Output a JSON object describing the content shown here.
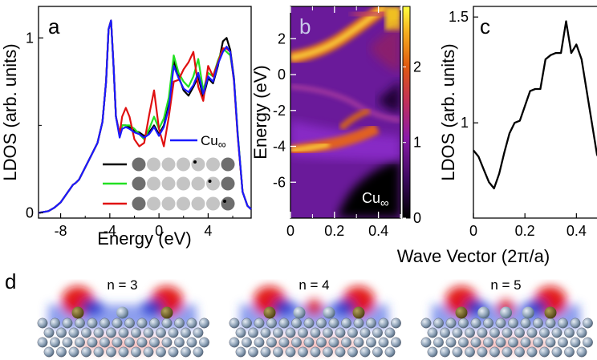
{
  "panels": {
    "a": "a",
    "b": "b",
    "c": "c",
    "d": "d"
  },
  "colors": {
    "black": "#000000",
    "green": "#22e022",
    "red": "#e01010",
    "blue": "#1a1aff",
    "atom_dark": "#6e6e6e",
    "atom_light": "#c4c4c4"
  },
  "chart_data": [
    {
      "panel": "a",
      "type": "line",
      "xlabel": "Energy (eV)",
      "ylabel": "LDOS (arb. units)",
      "xlim": [
        -9.8,
        7.5
      ],
      "ylim": [
        -0.03,
        1.18
      ],
      "xticks": [
        -8,
        -4,
        0,
        4
      ],
      "yticks": [
        0,
        1
      ],
      "legend": {
        "placement": "bottom-right",
        "label_main": "Cu",
        "label_sub": "∞",
        "chain_dot_positions": [
          4,
          5,
          6
        ]
      },
      "series": [
        {
          "color": "black",
          "x": [
            -9.8,
            -9,
            -8.5,
            -8,
            -7.5,
            -7,
            -6.8,
            -6.5,
            -6,
            -5.5,
            -5,
            -4.6,
            -4.3,
            -4.1,
            -3.9,
            -3.7,
            -3.5,
            -3.2,
            -3,
            -2.7,
            -2.4,
            -2,
            -1.6,
            -1.2,
            -0.8,
            -0.4,
            0,
            0.4,
            0.8,
            1.2,
            1.6,
            2,
            2.4,
            2.8,
            3.2,
            3.6,
            4,
            4.4,
            4.8,
            5.2,
            5.5,
            5.8,
            6.1,
            6.4,
            6.8,
            7.2,
            7.5
          ],
          "y": [
            0,
            0.01,
            0.03,
            0.06,
            0.11,
            0.16,
            0.17,
            0.19,
            0.26,
            0.33,
            0.4,
            0.52,
            0.75,
            1.05,
            1.1,
            0.85,
            0.55,
            0.45,
            0.5,
            0.5,
            0.49,
            0.47,
            0.46,
            0.44,
            0.46,
            0.5,
            0.45,
            0.5,
            0.62,
            0.87,
            0.78,
            0.7,
            0.67,
            0.72,
            0.78,
            0.66,
            0.77,
            0.74,
            0.84,
            0.98,
            1.0,
            0.93,
            0.77,
            0.45,
            0.12,
            0.04,
            0.02
          ]
        },
        {
          "color": "green",
          "x": [
            -9.8,
            -9,
            -8.5,
            -8,
            -7.5,
            -7,
            -6.8,
            -6.5,
            -6,
            -5.5,
            -5,
            -4.6,
            -4.3,
            -4.1,
            -3.9,
            -3.7,
            -3.5,
            -3.2,
            -3,
            -2.7,
            -2.4,
            -2,
            -1.6,
            -1.2,
            -0.8,
            -0.4,
            0,
            0.4,
            0.8,
            1.2,
            1.6,
            2,
            2.4,
            2.8,
            3.2,
            3.6,
            4,
            4.4,
            4.8,
            5.2,
            5.5,
            5.8,
            6.1,
            6.4,
            6.8,
            7.2,
            7.5
          ],
          "y": [
            0,
            0.01,
            0.03,
            0.06,
            0.11,
            0.16,
            0.17,
            0.19,
            0.26,
            0.33,
            0.4,
            0.52,
            0.75,
            1.05,
            1.1,
            0.85,
            0.55,
            0.44,
            0.5,
            0.5,
            0.5,
            0.48,
            0.45,
            0.42,
            0.48,
            0.55,
            0.48,
            0.54,
            0.66,
            0.9,
            0.8,
            0.75,
            0.72,
            0.78,
            0.88,
            0.7,
            0.8,
            0.78,
            0.87,
            0.94,
            0.92,
            0.9,
            0.76,
            0.46,
            0.12,
            0.04,
            0.02
          ]
        },
        {
          "color": "red",
          "x": [
            -9.8,
            -9,
            -8.5,
            -8,
            -7.5,
            -7,
            -6.8,
            -6.5,
            -6,
            -5.5,
            -5,
            -4.6,
            -4.3,
            -4.1,
            -3.9,
            -3.7,
            -3.5,
            -3.2,
            -3,
            -2.7,
            -2.4,
            -2,
            -1.6,
            -1.2,
            -0.8,
            -0.4,
            0,
            0.4,
            0.8,
            1.2,
            1.6,
            2,
            2.4,
            2.8,
            3.2,
            3.6,
            4,
            4.4,
            4.8,
            5.2,
            5.5,
            5.8,
            6.1,
            6.4,
            6.8,
            7.2,
            7.5
          ],
          "y": [
            0,
            0.01,
            0.03,
            0.06,
            0.11,
            0.16,
            0.17,
            0.19,
            0.26,
            0.33,
            0.4,
            0.52,
            0.75,
            1.05,
            1.1,
            0.85,
            0.55,
            0.45,
            0.55,
            0.6,
            0.55,
            0.42,
            0.38,
            0.4,
            0.56,
            0.7,
            0.48,
            0.38,
            0.55,
            0.75,
            0.76,
            0.82,
            0.86,
            0.92,
            0.72,
            0.64,
            0.84,
            0.78,
            0.86,
            0.94,
            0.94,
            0.92,
            0.75,
            0.44,
            0.12,
            0.04,
            0.02
          ]
        },
        {
          "color": "blue",
          "x": [
            -9.8,
            -9,
            -8.5,
            -8,
            -7.5,
            -7,
            -6.8,
            -6.5,
            -6,
            -5.5,
            -5,
            -4.6,
            -4.3,
            -4.1,
            -3.9,
            -3.7,
            -3.5,
            -3.2,
            -3,
            -2.7,
            -2.4,
            -2,
            -1.6,
            -1.2,
            -0.8,
            -0.4,
            0,
            0.4,
            0.8,
            1.2,
            1.6,
            2,
            2.4,
            2.8,
            3.2,
            3.6,
            4,
            4.4,
            4.8,
            5.2,
            5.5,
            5.8,
            6.1,
            6.4,
            6.8,
            7.2,
            7.5
          ],
          "y": [
            0,
            0.01,
            0.03,
            0.06,
            0.11,
            0.16,
            0.17,
            0.19,
            0.26,
            0.33,
            0.4,
            0.52,
            0.75,
            1.05,
            1.1,
            0.85,
            0.55,
            0.43,
            0.48,
            0.49,
            0.48,
            0.46,
            0.45,
            0.43,
            0.45,
            0.49,
            0.44,
            0.49,
            0.6,
            0.84,
            0.77,
            0.71,
            0.69,
            0.73,
            0.8,
            0.68,
            0.78,
            0.75,
            0.85,
            0.92,
            0.95,
            0.92,
            0.76,
            0.45,
            0.12,
            0.04,
            0.02
          ]
        }
      ]
    },
    {
      "panel": "b",
      "type": "heatmap",
      "xlabel": "Wave Vector (2π/a)",
      "ylabel": "Energy (eV)",
      "xlim": [
        0,
        0.5
      ],
      "ylim": [
        -8,
        3.8
      ],
      "xticks": [
        0,
        0.2,
        0.4
      ],
      "yticks": [
        2,
        0,
        -2,
        -4,
        -6
      ],
      "colorbar": {
        "ticks": [
          0,
          1,
          2
        ],
        "range": [
          0,
          2.8
        ]
      },
      "label_main": "Cu",
      "label_sub": "∞"
    },
    {
      "panel": "c",
      "type": "line",
      "ylabel": "LDOS (arb. units)",
      "xlim": [
        0,
        0.5
      ],
      "ylim": [
        0.55,
        1.55
      ],
      "xticks": [
        0,
        0.2,
        0.4
      ],
      "yticks": [
        1,
        1.5
      ],
      "series": [
        {
          "color": "black",
          "x": [
            0,
            0.02,
            0.04,
            0.06,
            0.08,
            0.1,
            0.12,
            0.14,
            0.16,
            0.18,
            0.2,
            0.22,
            0.24,
            0.26,
            0.28,
            0.3,
            0.32,
            0.34,
            0.36,
            0.38,
            0.4,
            0.42,
            0.44,
            0.46,
            0.48,
            0.5
          ],
          "y": [
            0.87,
            0.84,
            0.78,
            0.72,
            0.69,
            0.76,
            0.86,
            0.95,
            1.0,
            1.01,
            1.08,
            1.15,
            1.16,
            1.16,
            1.3,
            1.32,
            1.33,
            1.33,
            1.48,
            1.33,
            1.37,
            1.3,
            1.15,
            1.0,
            0.85,
            0.8
          ]
        }
      ]
    }
  ],
  "panel_d": {
    "labels": [
      "n = 3",
      "n = 4",
      "n = 5"
    ]
  }
}
